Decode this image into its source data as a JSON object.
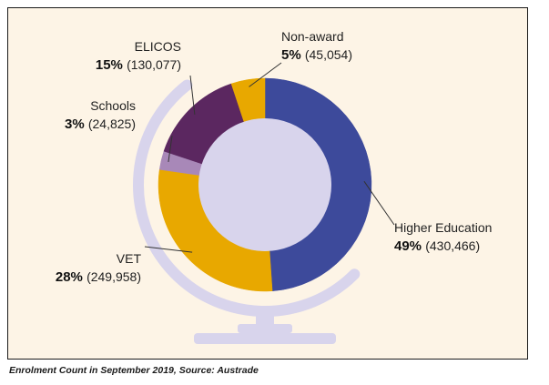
{
  "chart_data": {
    "type": "pie",
    "style": "donut",
    "segments": [
      {
        "name": "Higher Education",
        "percent_label": "49%",
        "count_label": "(430,466)",
        "value": 430466,
        "color": "#3d4a9b"
      },
      {
        "name": "VET",
        "percent_label": "28%",
        "count_label": "(249,958)",
        "value": 249958,
        "color": "#e8a800"
      },
      {
        "name": "Schools",
        "percent_label": "3%",
        "count_label": "(24,825)",
        "value": 24825,
        "color": "#a888b8"
      },
      {
        "name": "ELICOS",
        "percent_label": "15%",
        "count_label": "(130,077)",
        "value": 130077,
        "color": "#5b2760"
      },
      {
        "name": "Non-award",
        "percent_label": "5%",
        "count_label": "(45,054)",
        "value": 45054,
        "color": "#e8a800"
      }
    ],
    "legend": "none",
    "background_color": "#fdf4e6",
    "globe_stand_color": "#d8d4ec",
    "center_color": "#d8d4ec"
  },
  "caption": "Enrolment Count in September 2019, Source: Austrade"
}
